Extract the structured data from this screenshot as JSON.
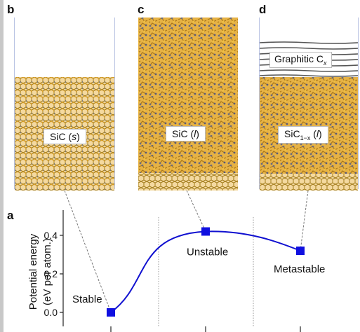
{
  "panels": {
    "b": {
      "letter": "b",
      "label_main": "SiC (",
      "label_italic": "s",
      "label_end": ")"
    },
    "c": {
      "letter": "c",
      "label_main": "SiC (",
      "label_italic": "l",
      "label_end": ")"
    },
    "d": {
      "letter": "d",
      "graphitic_label": "Graphitic C",
      "graphitic_sub": "x",
      "label_main": "SiC",
      "label_sub": "1−x",
      "label_mid": " (",
      "label_italic": "l",
      "label_end": ")"
    }
  },
  "plot": {
    "letter": "a",
    "ylabel_line1": "Potential energy",
    "ylabel_line2": "(eV per atom.)"
  },
  "chart_data": {
    "type": "line",
    "ylim": [
      -0.04,
      0.5
    ],
    "yticks": [
      "0.0",
      "0.2",
      "0.4"
    ],
    "ytick_values": [
      0.0,
      0.2,
      0.4
    ],
    "points": [
      {
        "label": "Stable",
        "x": 0,
        "y": 0.0
      },
      {
        "label": "Unstable",
        "x": 1,
        "y": 0.42
      },
      {
        "label": "Metastable",
        "x": 2,
        "y": 0.32
      }
    ],
    "colors": {
      "curve": "#1010d0",
      "marker": "#1010e0",
      "grid": "#999999"
    }
  }
}
